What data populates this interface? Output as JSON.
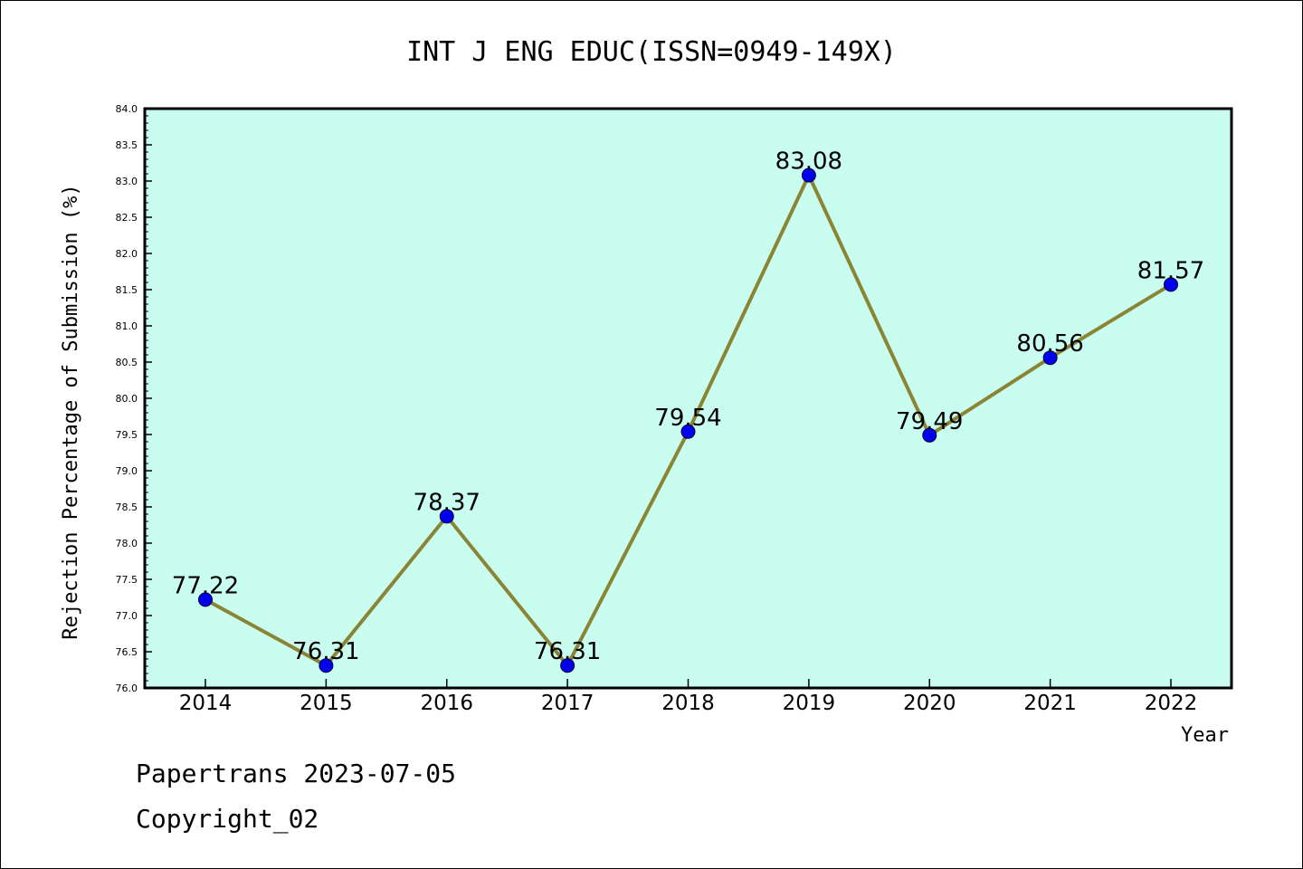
{
  "chart_data": {
    "type": "line",
    "title": "INT J ENG EDUC(ISSN=0949-149X)",
    "xlabel": "Year",
    "ylabel": "Rejection Percentage of Submission (%)",
    "categories": [
      "2014",
      "2015",
      "2016",
      "2017",
      "2018",
      "2019",
      "2020",
      "2021",
      "2022"
    ],
    "values": [
      77.22,
      76.31,
      78.37,
      76.31,
      79.54,
      83.08,
      79.49,
      80.56,
      81.57
    ],
    "data_labels": [
      "77.22",
      "76.31",
      "78.37",
      "76.31",
      "79.54",
      "83.08",
      "79.49",
      "80.56",
      "81.57"
    ],
    "yticks": [
      "76.0",
      "76.5",
      "77.0",
      "77.5",
      "78.0",
      "78.5",
      "79.0",
      "79.5",
      "80.0",
      "80.5",
      "81.0",
      "81.5",
      "82.0",
      "82.5",
      "83.0",
      "83.5",
      "84.0"
    ],
    "ylim": [
      76.0,
      84.0
    ],
    "grid": false,
    "colors": {
      "plot_bg": "#c8fdf0",
      "line": "#8b8435",
      "marker": "#0000ee"
    }
  },
  "footer": {
    "line1": "Papertrans 2023-07-05",
    "line2": "Copyright_02"
  }
}
